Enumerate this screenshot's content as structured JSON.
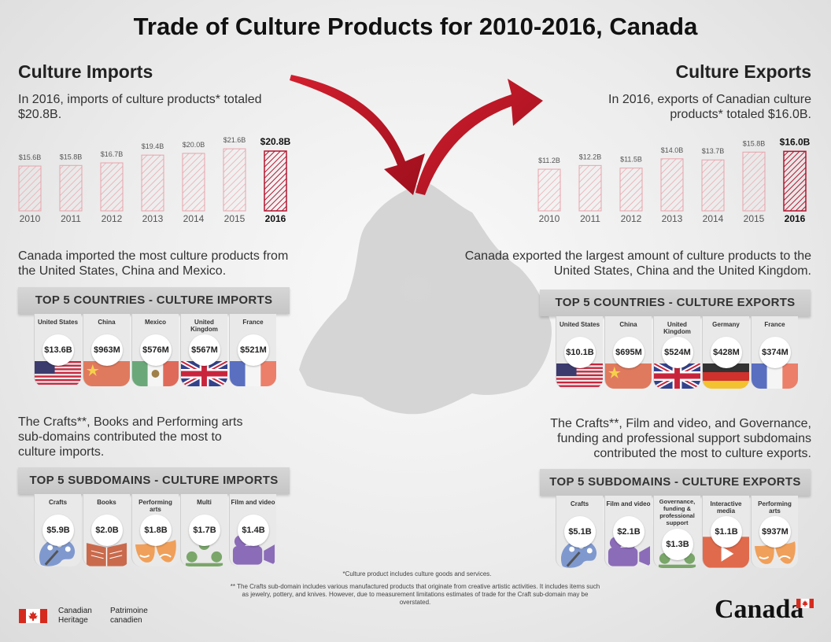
{
  "title": "Trade of Culture Products for 2010-2016, Canada",
  "imports": {
    "heading": "Culture Imports",
    "summary": "In 2016, imports of culture products* totaled $20.8B.",
    "countries_text": "Canada imported the most culture products from the United States, China and Mexico.",
    "countries_banner": "TOP 5 COUNTRIES - CULTURE IMPORTS",
    "countries": [
      {
        "name": "United States",
        "value": "$13.6B",
        "flag": "usa-flag"
      },
      {
        "name": "China",
        "value": "$963M",
        "flag": "china-flag"
      },
      {
        "name": "Mexico",
        "value": "$576M",
        "flag": "mexico-flag"
      },
      {
        "name": "United Kingdom",
        "value": "$567M",
        "flag": "uk-flag"
      },
      {
        "name": "France",
        "value": "$521M",
        "flag": "france-flag"
      }
    ],
    "subdomains_text": "The Crafts**, Books and Performing arts sub-domains contributed the most to culture imports.",
    "subdomains_banner": "TOP 5 SUBDOMAINS - CULTURE IMPORTS",
    "subdomains": [
      {
        "name": "Crafts",
        "value": "$5.9B",
        "icon": "palette-icon"
      },
      {
        "name": "Books",
        "value": "$2.0B",
        "icon": "book-icon"
      },
      {
        "name": "Performing arts",
        "value": "$1.8B",
        "icon": "theatre-masks-icon"
      },
      {
        "name": "Multi",
        "value": "$1.7B",
        "icon": "group-icon"
      },
      {
        "name": "Film and video",
        "value": "$1.4B",
        "icon": "video-camera-icon"
      }
    ]
  },
  "exports": {
    "heading": "Culture Exports",
    "summary": "In 2016, exports of Canadian culture products* totaled $16.0B.",
    "countries_text": "Canada exported the largest amount of culture products to the United States, China and the United Kingdom.",
    "countries_banner": "TOP 5 COUNTRIES - CULTURE EXPORTS",
    "countries": [
      {
        "name": "United States",
        "value": "$10.1B",
        "flag": "usa-flag"
      },
      {
        "name": "China",
        "value": "$695M",
        "flag": "china-flag"
      },
      {
        "name": "United Kingdom",
        "value": "$524M",
        "flag": "uk-flag"
      },
      {
        "name": "Germany",
        "value": "$428M",
        "flag": "germany-flag"
      },
      {
        "name": "France",
        "value": "$374M",
        "flag": "france-flag"
      }
    ],
    "subdomains_text": "The Crafts**, Film and video, and Governance, funding and professional support subdomains contributed the most to culture exports.",
    "subdomains_banner": "TOP 5 SUBDOMAINS - CULTURE EXPORTS",
    "subdomains": [
      {
        "name": "Crafts",
        "value": "$5.1B",
        "icon": "palette-icon"
      },
      {
        "name": "Film and video",
        "value": "$2.1B",
        "icon": "video-camera-icon"
      },
      {
        "name": "Governance, funding & professional support",
        "value": "$1.3B",
        "icon": "group-icon"
      },
      {
        "name": "Interactive media",
        "value": "$1.1B",
        "icon": "play-button-icon"
      },
      {
        "name": "Performing arts",
        "value": "$937M",
        "icon": "theatre-masks-icon"
      }
    ]
  },
  "chart_data": [
    {
      "type": "bar",
      "categories": [
        "2010",
        "2011",
        "2012",
        "2013",
        "2014",
        "2015",
        "2016"
      ],
      "values": [
        15.6,
        15.8,
        16.7,
        19.4,
        20.0,
        21.6,
        20.8
      ],
      "labels": [
        "$15.6B",
        "$15.8B",
        "$16.7B",
        "$19.4B",
        "$20.0B",
        "$21.6B",
        "$20.8B"
      ],
      "highlight": "2016",
      "ylim": [
        0,
        22
      ]
    },
    {
      "type": "bar",
      "categories": [
        "2010",
        "2011",
        "2012",
        "2013",
        "2014",
        "2015",
        "2016"
      ],
      "values": [
        11.2,
        12.2,
        11.5,
        14.0,
        13.7,
        15.8,
        16.0
      ],
      "labels": [
        "$11.2B",
        "$12.2B",
        "$11.5B",
        "$14.0B",
        "$13.7B",
        "$15.8B",
        "$16.0B"
      ],
      "highlight": "2016",
      "ylim": [
        0,
        17
      ]
    }
  ],
  "colors": {
    "accent_red": "#c8102e",
    "bar_light": "#e8a3ab",
    "bar_dark": "#b5152f"
  },
  "footnote1": "*Culture product includes culture goods and services.",
  "footnote2": "** The Crafts sub-domain includes various manufactured products that originate from creative artistic activities. It includes items such as jewelry, pottery, and knives. However, due to measurement limitations estimates of trade for the Craft sub-domain may be overstated.",
  "logo": {
    "en": "Canadian Heritage",
    "fr": "Patrimoine canadien",
    "wordmark": "Canada"
  }
}
